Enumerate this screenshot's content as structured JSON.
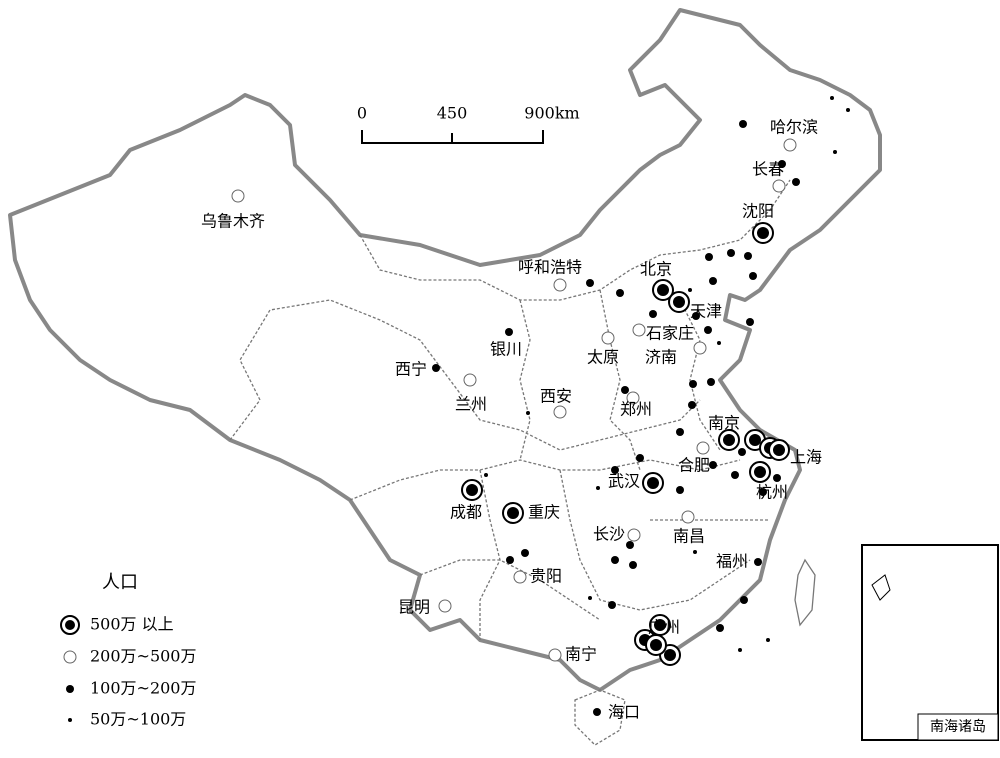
{
  "scale_bar": {
    "labels": [
      "0",
      "450",
      "900km"
    ]
  },
  "legend": {
    "title": "人口",
    "items": [
      "500万 以上",
      "200万~500万",
      "100万~200万",
      "50万~100万"
    ]
  },
  "cities": [
    "乌鲁木齐",
    "哈尔滨",
    "长春",
    "沈阳",
    "呼和浩特",
    "北京",
    "天津",
    "石家庄",
    "太原",
    "济南",
    "银川",
    "西宁",
    "兰州",
    "西安",
    "郑州",
    "南京",
    "上海",
    "合肥",
    "武汉",
    "杭州",
    "成都",
    "重庆",
    "长沙",
    "南昌",
    "福州",
    "贵阳",
    "昆明",
    "广州",
    "南宁",
    "海口"
  ],
  "inset": {
    "title": "南海诸岛"
  }
}
